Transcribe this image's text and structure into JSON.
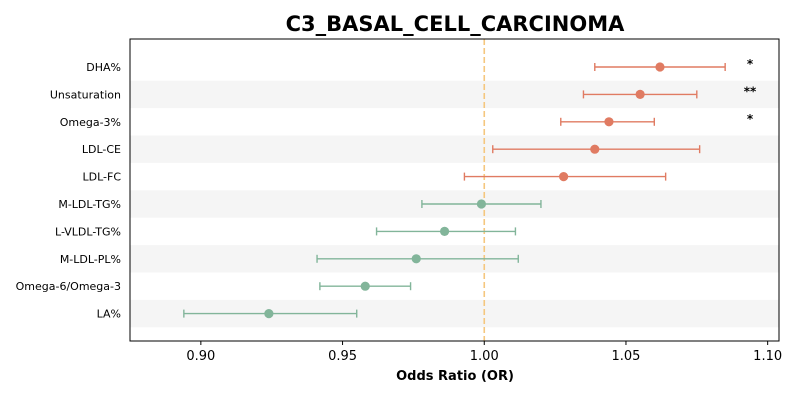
{
  "chart_data": {
    "type": "forest",
    "title": "C3_BASAL_CELL_CARCINOMA",
    "xlabel": "Odds Ratio (OR)",
    "xlim": [
      0.875,
      1.104
    ],
    "xticks": [
      "0.90",
      "0.95",
      "1.00",
      "1.05",
      "1.10"
    ],
    "reference_line": 1.0,
    "grid": false,
    "row_banding": true,
    "colors": {
      "positive": "#e07b62",
      "negative": "#82b59a",
      "reference": "#f5c77e",
      "band": "#f5f5f5"
    },
    "rows": [
      {
        "label": "DHA%",
        "or": 1.062,
        "lo": 1.039,
        "hi": 1.085,
        "sig": "*"
      },
      {
        "label": "Unsaturation",
        "or": 1.055,
        "lo": 1.035,
        "hi": 1.075,
        "sig": "**"
      },
      {
        "label": "Omega-3%",
        "or": 1.044,
        "lo": 1.027,
        "hi": 1.06,
        "sig": "*"
      },
      {
        "label": "LDL-CE",
        "or": 1.039,
        "lo": 1.003,
        "hi": 1.076,
        "sig": ""
      },
      {
        "label": "LDL-FC",
        "or": 1.028,
        "lo": 0.993,
        "hi": 1.064,
        "sig": ""
      },
      {
        "label": "M-LDL-TG%",
        "or": 0.999,
        "lo": 0.978,
        "hi": 1.02,
        "sig": ""
      },
      {
        "label": "L-VLDL-TG%",
        "or": 0.986,
        "lo": 0.962,
        "hi": 1.011,
        "sig": ""
      },
      {
        "label": "M-LDL-PL%",
        "or": 0.976,
        "lo": 0.941,
        "hi": 1.012,
        "sig": ""
      },
      {
        "label": "Omega-6/Omega-3",
        "or": 0.958,
        "lo": 0.942,
        "hi": 0.974,
        "sig": ""
      },
      {
        "label": "LA%",
        "or": 0.924,
        "lo": 0.894,
        "hi": 0.955,
        "sig": ""
      }
    ]
  }
}
